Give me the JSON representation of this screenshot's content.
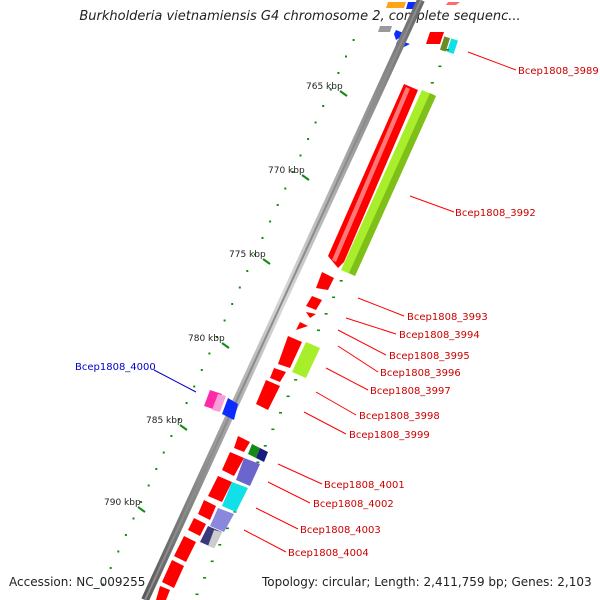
{
  "title": "Burkholderia vietnamiensis G4 chromosome 2, complete sequenc...",
  "footer": {
    "accession": "Accession: NC_009255",
    "summary": "Topology: circular; Length: 2,411,759 bp; Genes: 2,103"
  },
  "colors": {
    "backbone": "#8c8c8c",
    "cds_forward": "#ff0000",
    "cds_reverse_label": "#0000cc",
    "label_forward": "#cc0000",
    "gc_ticks": "#138a13",
    "highlight_green": "#a8ee2a",
    "magenta": "#ff2aa8",
    "blue": "#0b2bff",
    "cyan": "#11e0e8",
    "slate": "#8a88dd",
    "navy": "#1a1a80"
  },
  "scale_ticks": [
    "765 kbp",
    "770 kbp",
    "775 kbp",
    "780 kbp",
    "785 kbp",
    "790 kbp"
  ],
  "gene_labels": [
    {
      "text": "Bcep1808_3989",
      "strand": "forward"
    },
    {
      "text": "Bcep1808_3992",
      "strand": "forward"
    },
    {
      "text": "Bcep1808_3993",
      "strand": "forward"
    },
    {
      "text": "Bcep1808_3994",
      "strand": "forward"
    },
    {
      "text": "Bcep1808_3995",
      "strand": "forward"
    },
    {
      "text": "Bcep1808_3996",
      "strand": "forward"
    },
    {
      "text": "Bcep1808_3997",
      "strand": "forward"
    },
    {
      "text": "Bcep1808_3998",
      "strand": "forward"
    },
    {
      "text": "Bcep1808_3999",
      "strand": "forward"
    },
    {
      "text": "Bcep1808_4000",
      "strand": "reverse"
    },
    {
      "text": "Bcep1808_4001",
      "strand": "forward"
    },
    {
      "text": "Bcep1808_4002",
      "strand": "forward"
    },
    {
      "text": "Bcep1808_4003",
      "strand": "forward"
    },
    {
      "text": "Bcep1808_4004",
      "strand": "forward"
    }
  ]
}
